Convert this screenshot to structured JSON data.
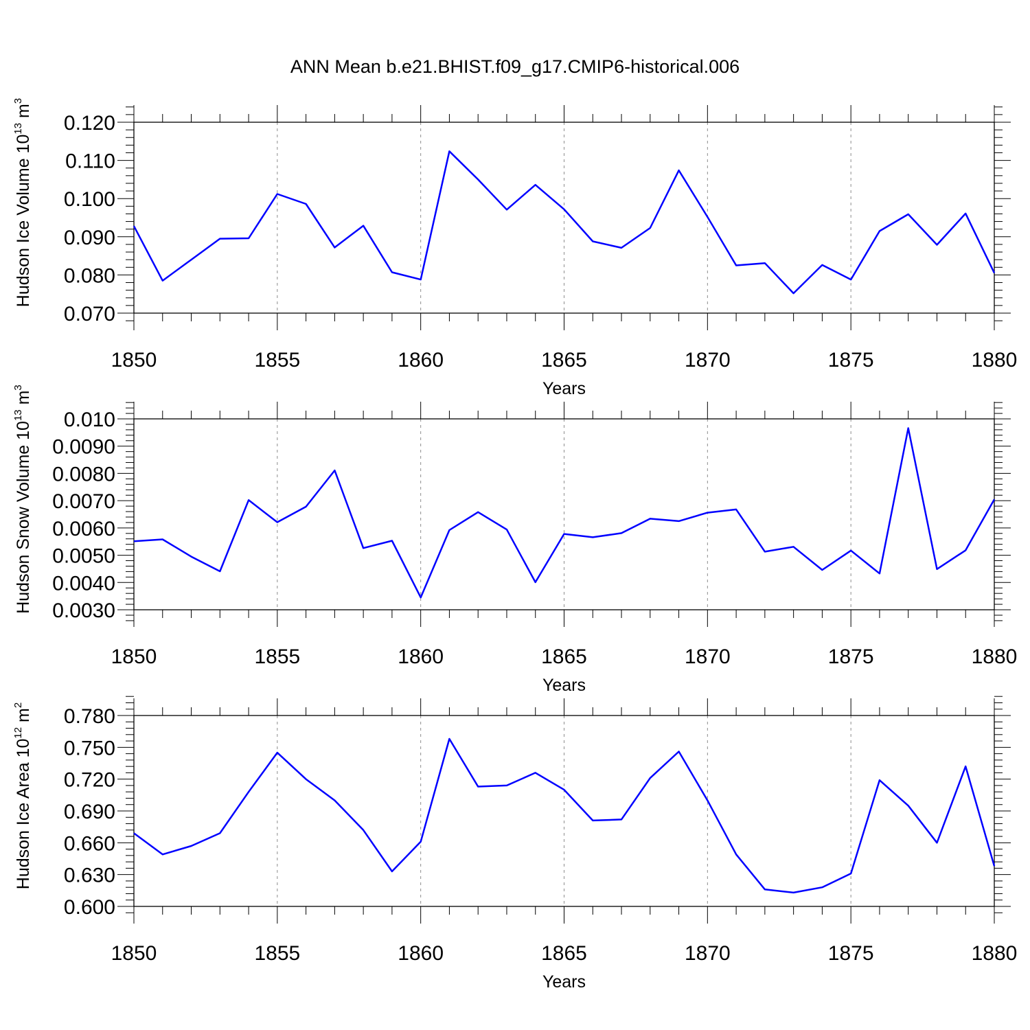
{
  "title": "ANN Mean b.e21.BHIST.f09_g17.CMIP6-historical.006",
  "chart_data": [
    {
      "type": "line",
      "ylabel": {
        "base": "Hudson Ice Volume 10",
        "exp": "13",
        "unit": " m",
        "unit_exp": "3"
      },
      "xlabel": "Years",
      "xlim": [
        1850,
        1880
      ],
      "ylim": [
        0.07,
        0.12
      ],
      "x_ticks": [
        "1850",
        "1855",
        "1860",
        "1865",
        "1870",
        "1875",
        "1880"
      ],
      "y_ticks": [
        "0.070",
        "0.080",
        "0.090",
        "0.100",
        "0.110",
        "0.120"
      ],
      "y_tick_values": [
        0.07,
        0.08,
        0.09,
        0.1,
        0.11,
        0.12
      ],
      "line_color": "#0000ff",
      "x": [
        1850,
        1851,
        1852,
        1853,
        1854,
        1855,
        1856,
        1857,
        1858,
        1859,
        1860,
        1861,
        1862,
        1863,
        1864,
        1865,
        1866,
        1867,
        1868,
        1869,
        1870,
        1871,
        1872,
        1873,
        1874,
        1875,
        1876,
        1877,
        1878,
        1879,
        1880
      ],
      "values": [
        0.0928,
        0.0785,
        0.084,
        0.0895,
        0.0896,
        0.1012,
        0.0986,
        0.0872,
        0.0929,
        0.0807,
        0.0788,
        0.1124,
        0.105,
        0.0971,
        0.1036,
        0.0972,
        0.0888,
        0.0871,
        0.0923,
        0.1074,
        0.0952,
        0.0825,
        0.0831,
        0.0752,
        0.0826,
        0.0788,
        0.0915,
        0.0959,
        0.0879,
        0.0961,
        0.0805
      ]
    },
    {
      "type": "line",
      "ylabel": {
        "base": "Hudson Snow Volume 10",
        "exp": "13",
        "unit": " m",
        "unit_exp": "3"
      },
      "xlabel": "Years",
      "xlim": [
        1850,
        1880
      ],
      "ylim": [
        0.003,
        0.01
      ],
      "x_ticks": [
        "1850",
        "1855",
        "1860",
        "1865",
        "1870",
        "1875",
        "1880"
      ],
      "y_ticks": [
        "0.0030",
        "0.0040",
        "0.0050",
        "0.0060",
        "0.0070",
        "0.0080",
        "0.0090",
        "0.010"
      ],
      "y_tick_values": [
        0.003,
        0.004,
        0.005,
        0.006,
        0.007,
        0.008,
        0.009,
        0.01
      ],
      "line_color": "#0000ff",
      "x": [
        1850,
        1851,
        1852,
        1853,
        1854,
        1855,
        1856,
        1857,
        1858,
        1859,
        1860,
        1861,
        1862,
        1863,
        1864,
        1865,
        1866,
        1867,
        1868,
        1869,
        1870,
        1871,
        1872,
        1873,
        1874,
        1875,
        1876,
        1877,
        1878,
        1879,
        1880
      ],
      "values": [
        0.00551,
        0.00558,
        0.00495,
        0.00441,
        0.00702,
        0.00621,
        0.00678,
        0.00811,
        0.00526,
        0.00553,
        0.00345,
        0.00592,
        0.00658,
        0.00594,
        0.00401,
        0.00578,
        0.00566,
        0.00581,
        0.00634,
        0.00625,
        0.00656,
        0.00668,
        0.00513,
        0.00531,
        0.00446,
        0.00517,
        0.00433,
        0.00966,
        0.00449,
        0.00518,
        0.00705
      ]
    },
    {
      "type": "line",
      "ylabel": {
        "base": "Hudson Ice Area 10",
        "exp": "12",
        "unit": " m",
        "unit_exp": "2"
      },
      "xlabel": "Years",
      "xlim": [
        1850,
        1880
      ],
      "ylim": [
        0.6,
        0.78
      ],
      "x_ticks": [
        "1850",
        "1855",
        "1860",
        "1865",
        "1870",
        "1875",
        "1880"
      ],
      "y_ticks": [
        "0.600",
        "0.630",
        "0.660",
        "0.690",
        "0.720",
        "0.750",
        "0.780"
      ],
      "y_tick_values": [
        0.6,
        0.63,
        0.66,
        0.69,
        0.72,
        0.75,
        0.78
      ],
      "line_color": "#0000ff",
      "x": [
        1850,
        1851,
        1852,
        1853,
        1854,
        1855,
        1856,
        1857,
        1858,
        1859,
        1860,
        1861,
        1862,
        1863,
        1864,
        1865,
        1866,
        1867,
        1868,
        1869,
        1870,
        1871,
        1872,
        1873,
        1874,
        1875,
        1876,
        1877,
        1878,
        1879,
        1880
      ],
      "values": [
        0.669,
        0.649,
        0.657,
        0.669,
        0.708,
        0.745,
        0.72,
        0.7,
        0.672,
        0.633,
        0.661,
        0.758,
        0.713,
        0.714,
        0.726,
        0.71,
        0.681,
        0.682,
        0.721,
        0.746,
        0.7,
        0.649,
        0.616,
        0.613,
        0.618,
        0.631,
        0.719,
        0.695,
        0.66,
        0.732,
        0.638
      ]
    }
  ]
}
